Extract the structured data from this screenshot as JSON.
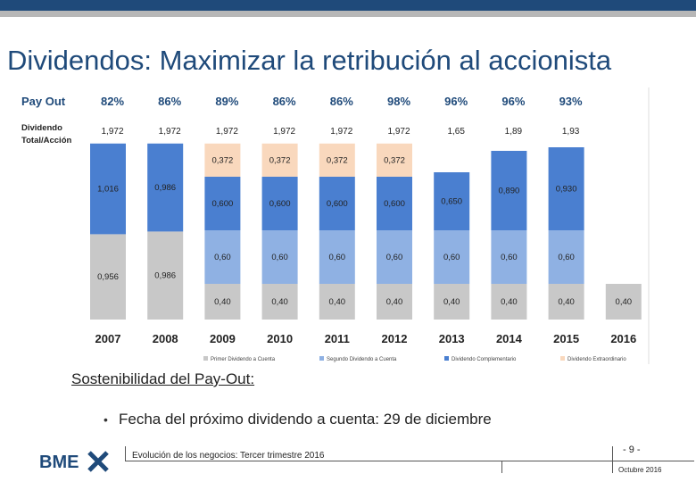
{
  "slide": {
    "title": "Dividendos: Maximizar la retribución al accionista",
    "subtitle": "Sostenibilidad del Pay-Out:",
    "bullet_glyph": "•",
    "bullet": "Fecha del próximo dividendo a cuenta: 29 de diciembre",
    "footer_text": "Evolución de los negocios: Tercer trimestre 2016",
    "page_number": "- 9 -",
    "footer_date": "Octubre 2016",
    "logo_text": "BME",
    "colors": {
      "top_bar": "#1f4a7a",
      "title": "#1f4a7a",
      "gray": "#c8c8c8",
      "light_blue": "#8fb1e3",
      "mid_blue": "#4a7fd0",
      "peach": "#f9d8bd",
      "dark_blue": "#2e6ec9"
    }
  },
  "chart_data": {
    "type": "bar",
    "stacked": true,
    "row_labels": {
      "payout": "Pay Out",
      "total": "Dividendo Total/Acción"
    },
    "categories": [
      "2007",
      "2008",
      "2009",
      "2010",
      "2011",
      "2012",
      "2013",
      "2014",
      "2015",
      "2016"
    ],
    "payout": [
      "82%",
      "86%",
      "89%",
      "86%",
      "86%",
      "98%",
      "96%",
      "96%",
      "93%",
      ""
    ],
    "total": [
      "1,972",
      "1,972",
      "1,972",
      "1,972",
      "1,972",
      "1,972",
      "1,65",
      "1,89",
      "1,93",
      ""
    ],
    "series": [
      {
        "name": "Primer Dividendo a Cuenta",
        "color": "#c8c8c8",
        "values": [
          0.956,
          0.986,
          0.4,
          0.4,
          0.4,
          0.4,
          0.4,
          0.4,
          0.4,
          0.4
        ],
        "labels": [
          "0,956",
          "0,986",
          "0,40",
          "0,40",
          "0,40",
          "0,40",
          "0,40",
          "0,40",
          "0,40",
          "0,40"
        ]
      },
      {
        "name": "Segundo Dividendo a Cuenta",
        "color": "#8fb1e3",
        "values": [
          0,
          0,
          0.6,
          0.6,
          0.6,
          0.6,
          0.6,
          0.6,
          0.6,
          0
        ],
        "labels": [
          "",
          "",
          "0,60",
          "0,60",
          "0,60",
          "0,60",
          "0,60",
          "0,60",
          "0,60",
          ""
        ]
      },
      {
        "name": "Dividendo Complementario",
        "color": "#4a7fd0",
        "values": [
          1.016,
          0.986,
          0.6,
          0.6,
          0.6,
          0.6,
          0.65,
          0.89,
          0.93,
          0
        ],
        "labels": [
          "1,016",
          "0,986",
          "0,600",
          "0,600",
          "0,600",
          "0,600",
          "0,650",
          "0,890",
          "0,930",
          ""
        ]
      },
      {
        "name": "Dividendo Extraordinario",
        "color": "#f9d8bd",
        "values": [
          0,
          0,
          0.372,
          0.372,
          0.372,
          0.372,
          0,
          0,
          0,
          0
        ],
        "labels": [
          "",
          "",
          "0,372",
          "0,372",
          "0,372",
          "0,372",
          "",
          "",
          "",
          ""
        ]
      }
    ],
    "ylim": [
      0,
      2.0
    ]
  }
}
